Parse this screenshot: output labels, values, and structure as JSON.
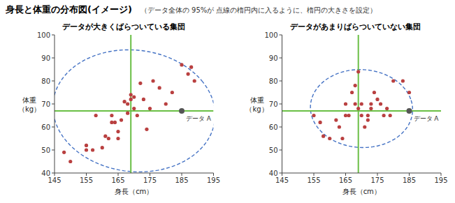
{
  "chart_data": [
    {
      "type": "scatter",
      "title": "身長と体重の分布図(イメージ)",
      "subtitle": "（データ全体の 95%が 点線の楕円内に入るように、楕円の大きさを設定）",
      "panel_title": "データが大きくばらついている集団",
      "xlabel": "身長（cm）",
      "ylabel": "体重\n（kg）",
      "xlim": [
        145,
        195
      ],
      "ylim": [
        40,
        100
      ],
      "xticks": [
        145,
        155,
        165,
        175,
        185,
        195
      ],
      "yticks": [
        40,
        50,
        60,
        70,
        80,
        90,
        100
      ],
      "color": "#b94040",
      "x": [
        148,
        150,
        155,
        155,
        157,
        158,
        160,
        161,
        162,
        163,
        163,
        164,
        165,
        165,
        166,
        167,
        168,
        168,
        169,
        169,
        170,
        170,
        171,
        172,
        173,
        174,
        175,
        176,
        178,
        180,
        182,
        185,
        187,
        188,
        189
      ],
      "values": [
        49,
        45,
        50,
        52,
        50,
        65,
        51,
        56,
        55,
        62,
        65,
        62,
        55,
        58,
        63,
        71,
        66,
        70,
        74,
        72,
        73,
        68,
        65,
        79,
        72,
        59,
        68,
        80,
        77,
        70,
        75,
        87,
        83,
        86,
        80
      ],
      "mean": {
        "x": 169,
        "y": 67,
        "color": "#6abf45"
      },
      "ellipse": {
        "cx": 170,
        "cy": 67,
        "width": 50,
        "height": 54,
        "angle": 30,
        "color": "#4472c4",
        "line_style": "dashed"
      },
      "annotations": [
        {
          "x": 185,
          "y": 67,
          "text": "データ A",
          "color": "#555555"
        }
      ]
    },
    {
      "type": "scatter",
      "panel_title": "データがあまりばらついていない集団",
      "xlabel": "身長（cm）",
      "ylabel": "体重\n（kg）",
      "xlim": [
        145,
        195
      ],
      "ylim": [
        40,
        100
      ],
      "xticks": [
        145,
        155,
        165,
        175,
        185,
        195
      ],
      "yticks": [
        40,
        50,
        60,
        70,
        80,
        90,
        100
      ],
      "color": "#b94040",
      "x": [
        155,
        157,
        158,
        160,
        162,
        163,
        164,
        165,
        165,
        166,
        167,
        168,
        168,
        169,
        169,
        170,
        170,
        171,
        172,
        172,
        173,
        173,
        174,
        175,
        176,
        177,
        178,
        179,
        180,
        183,
        185
      ],
      "values": [
        65,
        62,
        56,
        55,
        63,
        60,
        55,
        70,
        65,
        65,
        75,
        78,
        70,
        84,
        68,
        70,
        65,
        60,
        65,
        63,
        70,
        68,
        75,
        72,
        70,
        65,
        68,
        65,
        80,
        80,
        75
      ],
      "mean": {
        "x": 169,
        "y": 67,
        "color": "#6abf45"
      },
      "ellipse": {
        "cx": 170,
        "cy": 68,
        "width": 32,
        "height": 34,
        "angle": 15,
        "color": "#4472c4",
        "line_style": "dashed"
      },
      "annotations": [
        {
          "x": 185,
          "y": 67,
          "text": "データ A",
          "color": "#555555"
        }
      ]
    }
  ]
}
